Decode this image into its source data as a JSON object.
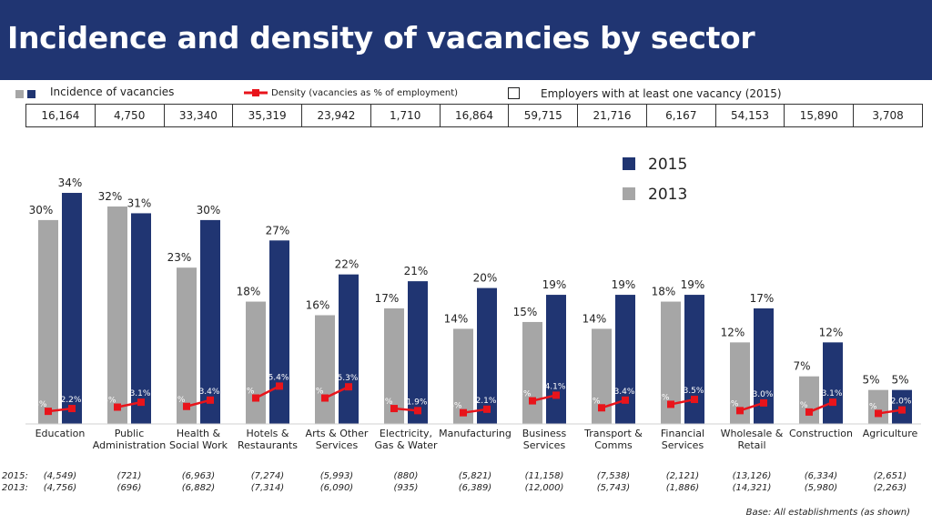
{
  "title": "Incidence and density of vacancies by sector",
  "legend": {
    "incidence": "Incidence of  vacancies",
    "density": "Density (vacancies as % of employment)",
    "employers": "Employers with at least one vacancy (2015)",
    "y2015": "2015",
    "y2013": "2013"
  },
  "employers_2015": [
    "16,164",
    "4,750",
    "33,340",
    "35,319",
    "23,942",
    "1,710",
    "16,864",
    "59,715",
    "21,716",
    "6,167",
    "54,153",
    "15,890",
    "3,708"
  ],
  "bottom_labels": {
    "y2015": "2015:",
    "y2013": "2013:"
  },
  "vacancies_2015": [
    "(4,549)",
    "(721)",
    "(6,963)",
    "(7,274)",
    "(5,993)",
    "(880)",
    "(5,821)",
    "(11,158)",
    "(7,538)",
    "(2,121)",
    "(13,126)",
    "(6,334)",
    "(2,651)"
  ],
  "vacancies_2013": [
    "(4,756)",
    "(696)",
    "(6,882)",
    "(7,314)",
    "(6,090)",
    "(935)",
    "(6,389)",
    "(12,000)",
    "(5,743)",
    "(1,886)",
    "(14,321)",
    "(5,980)",
    "(2,263)"
  ],
  "base_note": "Base: All establishments (as shown)",
  "colors": {
    "header": "#203572",
    "bar2015": "#203572",
    "bar2013": "#a6a6a6",
    "density": "#e8141b"
  },
  "chart_data": {
    "type": "bar",
    "categories": [
      "Education",
      "Public Administration",
      "Health & Social Work",
      "Hotels & Restaurants",
      "Arts & Other Services",
      "Electricity, Gas & Water",
      "Manufacturing",
      "Business Services",
      "Transport & Comms",
      "Financial Services",
      "Wholesale & Retail",
      "Construction",
      "Agriculture"
    ],
    "category_lines": [
      [
        "Education"
      ],
      [
        "Public",
        "Administration"
      ],
      [
        "Health &",
        "Social Work"
      ],
      [
        "Hotels &",
        "Restaurants"
      ],
      [
        "Arts & Other",
        "Services"
      ],
      [
        "Electricity,",
        "Gas & Water"
      ],
      [
        "Manufacturing"
      ],
      [
        "Business",
        "Services"
      ],
      [
        "Transport &",
        "Comms"
      ],
      [
        "Financial",
        "Services"
      ],
      [
        "Wholesale &",
        "Retail"
      ],
      [
        "Construction"
      ],
      [
        "Agriculture"
      ]
    ],
    "ylim": [
      0,
      40
    ],
    "series": [
      {
        "name": "2013",
        "values": [
          30,
          32,
          23,
          18,
          16,
          17,
          14,
          15,
          14,
          18,
          12,
          7,
          5
        ]
      },
      {
        "name": "2015",
        "values": [
          34,
          31,
          30,
          27,
          22,
          21,
          20,
          19,
          19,
          19,
          17,
          12,
          5
        ]
      }
    ],
    "density": {
      "y2013": [
        1.8,
        2.4,
        2.5,
        3.7,
        3.7,
        2.2,
        1.6,
        3.3,
        2.3,
        2.8,
        1.9,
        1.7,
        1.5
      ],
      "y2015": [
        2.2,
        3.1,
        3.4,
        5.4,
        5.3,
        1.9,
        2.1,
        4.1,
        3.4,
        3.5,
        3.0,
        3.1,
        2.0
      ]
    }
  }
}
